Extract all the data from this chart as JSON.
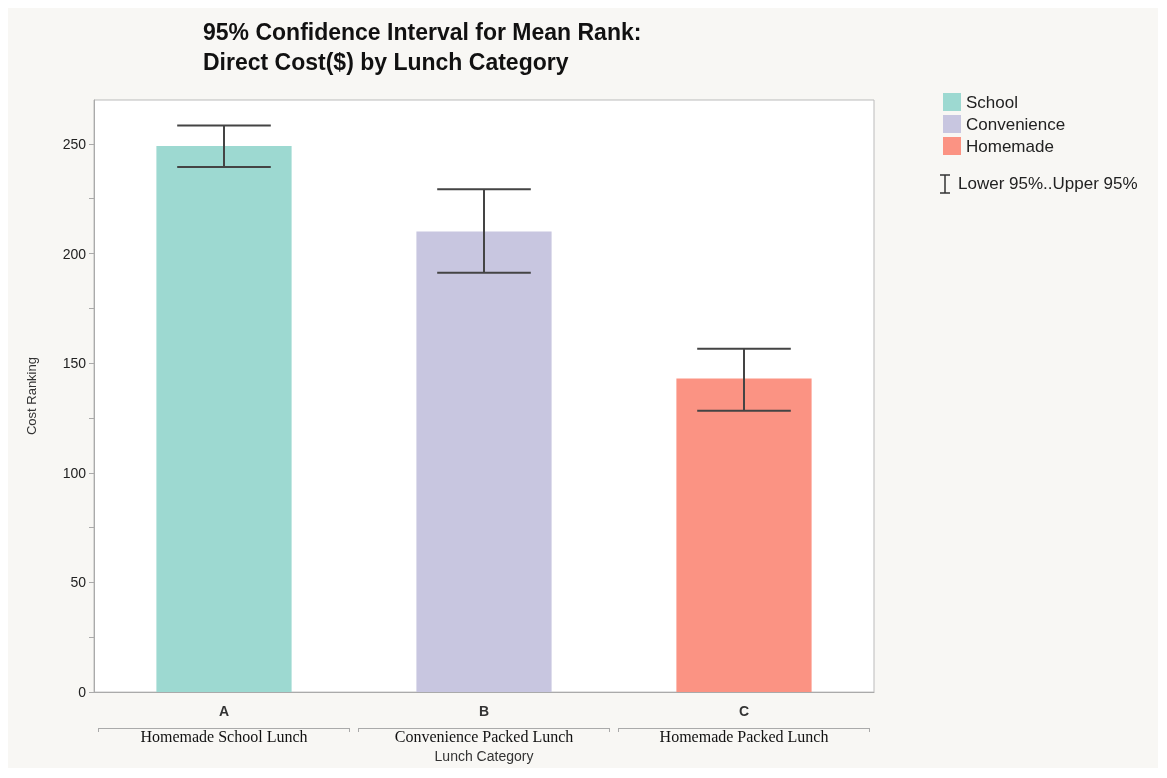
{
  "chart_data": {
    "type": "bar",
    "title": "95% Confidence Interval for Mean Rank:\nDirect Cost($) by Lunch Category",
    "xlabel": "Lunch Category",
    "ylabel": "Cost Ranking",
    "categories": [
      "A\nHomemade School Lunch",
      "B\nConvenience Packed Lunch",
      "C\nHomemade Packed Lunch"
    ],
    "series": [
      {
        "name": "School",
        "color": "#9dd9d1",
        "values": [
          249,
          null,
          null
        ],
        "errors": [
          [
            239.4,
            258.4
          ],
          null,
          null
        ]
      },
      {
        "name": "Convenience",
        "color": "#c8c6e0",
        "values": [
          null,
          210,
          null
        ],
        "errors": [
          null,
          [
            191.2,
            229.3
          ],
          null
        ]
      },
      {
        "name": "Homemade",
        "color": "#fb9383",
        "values": [
          null,
          null,
          143
        ],
        "errors": [
          null,
          null,
          [
            128.3,
            156.6
          ]
        ]
      }
    ],
    "annotations": [
      "Lower 95%..Upper 95%"
    ],
    "ylim": [
      0,
      270
    ],
    "yticks": [
      0,
      {
        "value": 25,
        "label": null
      },
      50,
      {
        "value": 75,
        "label": null
      },
      100,
      {
        "value": 125,
        "label": null
      },
      150,
      {
        "value": 175,
        "label": null
      },
      200,
      {
        "value": 225,
        "label": null
      },
      250
    ],
    "grid": false,
    "legend": "top right"
  }
}
